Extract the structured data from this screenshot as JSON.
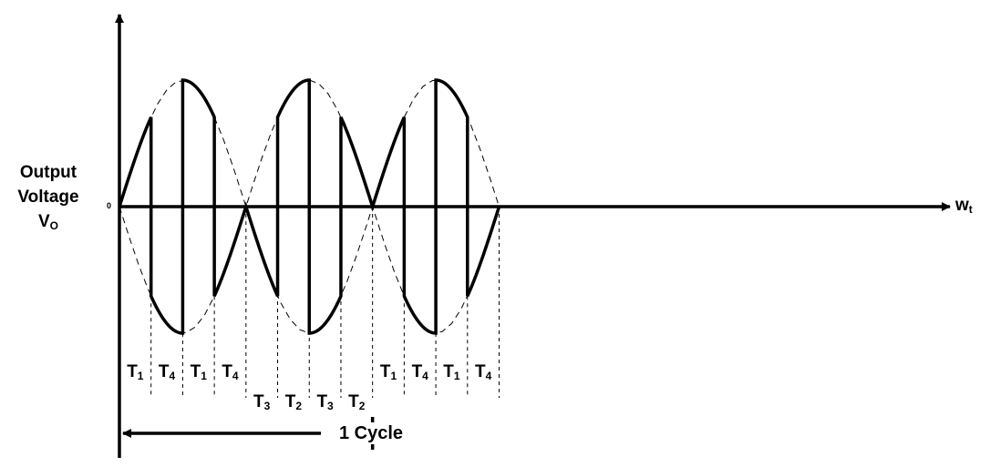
{
  "y_axis": {
    "lines": [
      "Output",
      "Voltage",
      "V"
    ],
    "subscript": "O",
    "origin_label": "0"
  },
  "x_axis": {
    "label": "w",
    "subscript": "t"
  },
  "segments_top": [
    {
      "main": "T",
      "sub": "1"
    },
    {
      "main": "T",
      "sub": "4"
    },
    {
      "main": "T",
      "sub": "1"
    },
    {
      "main": "T",
      "sub": "4"
    },
    {
      "main": "T",
      "sub": "1"
    },
    {
      "main": "T",
      "sub": "4"
    },
    {
      "main": "T",
      "sub": "1"
    },
    {
      "main": "T",
      "sub": "4"
    }
  ],
  "segments_bottom": [
    {
      "main": "T",
      "sub": "3"
    },
    {
      "main": "T",
      "sub": "2"
    },
    {
      "main": "T",
      "sub": "3"
    },
    {
      "main": "T",
      "sub": "2"
    }
  ],
  "cycle_label": "1 Cycle",
  "colors": {
    "stroke": "#000000",
    "background": "#ffffff"
  }
}
